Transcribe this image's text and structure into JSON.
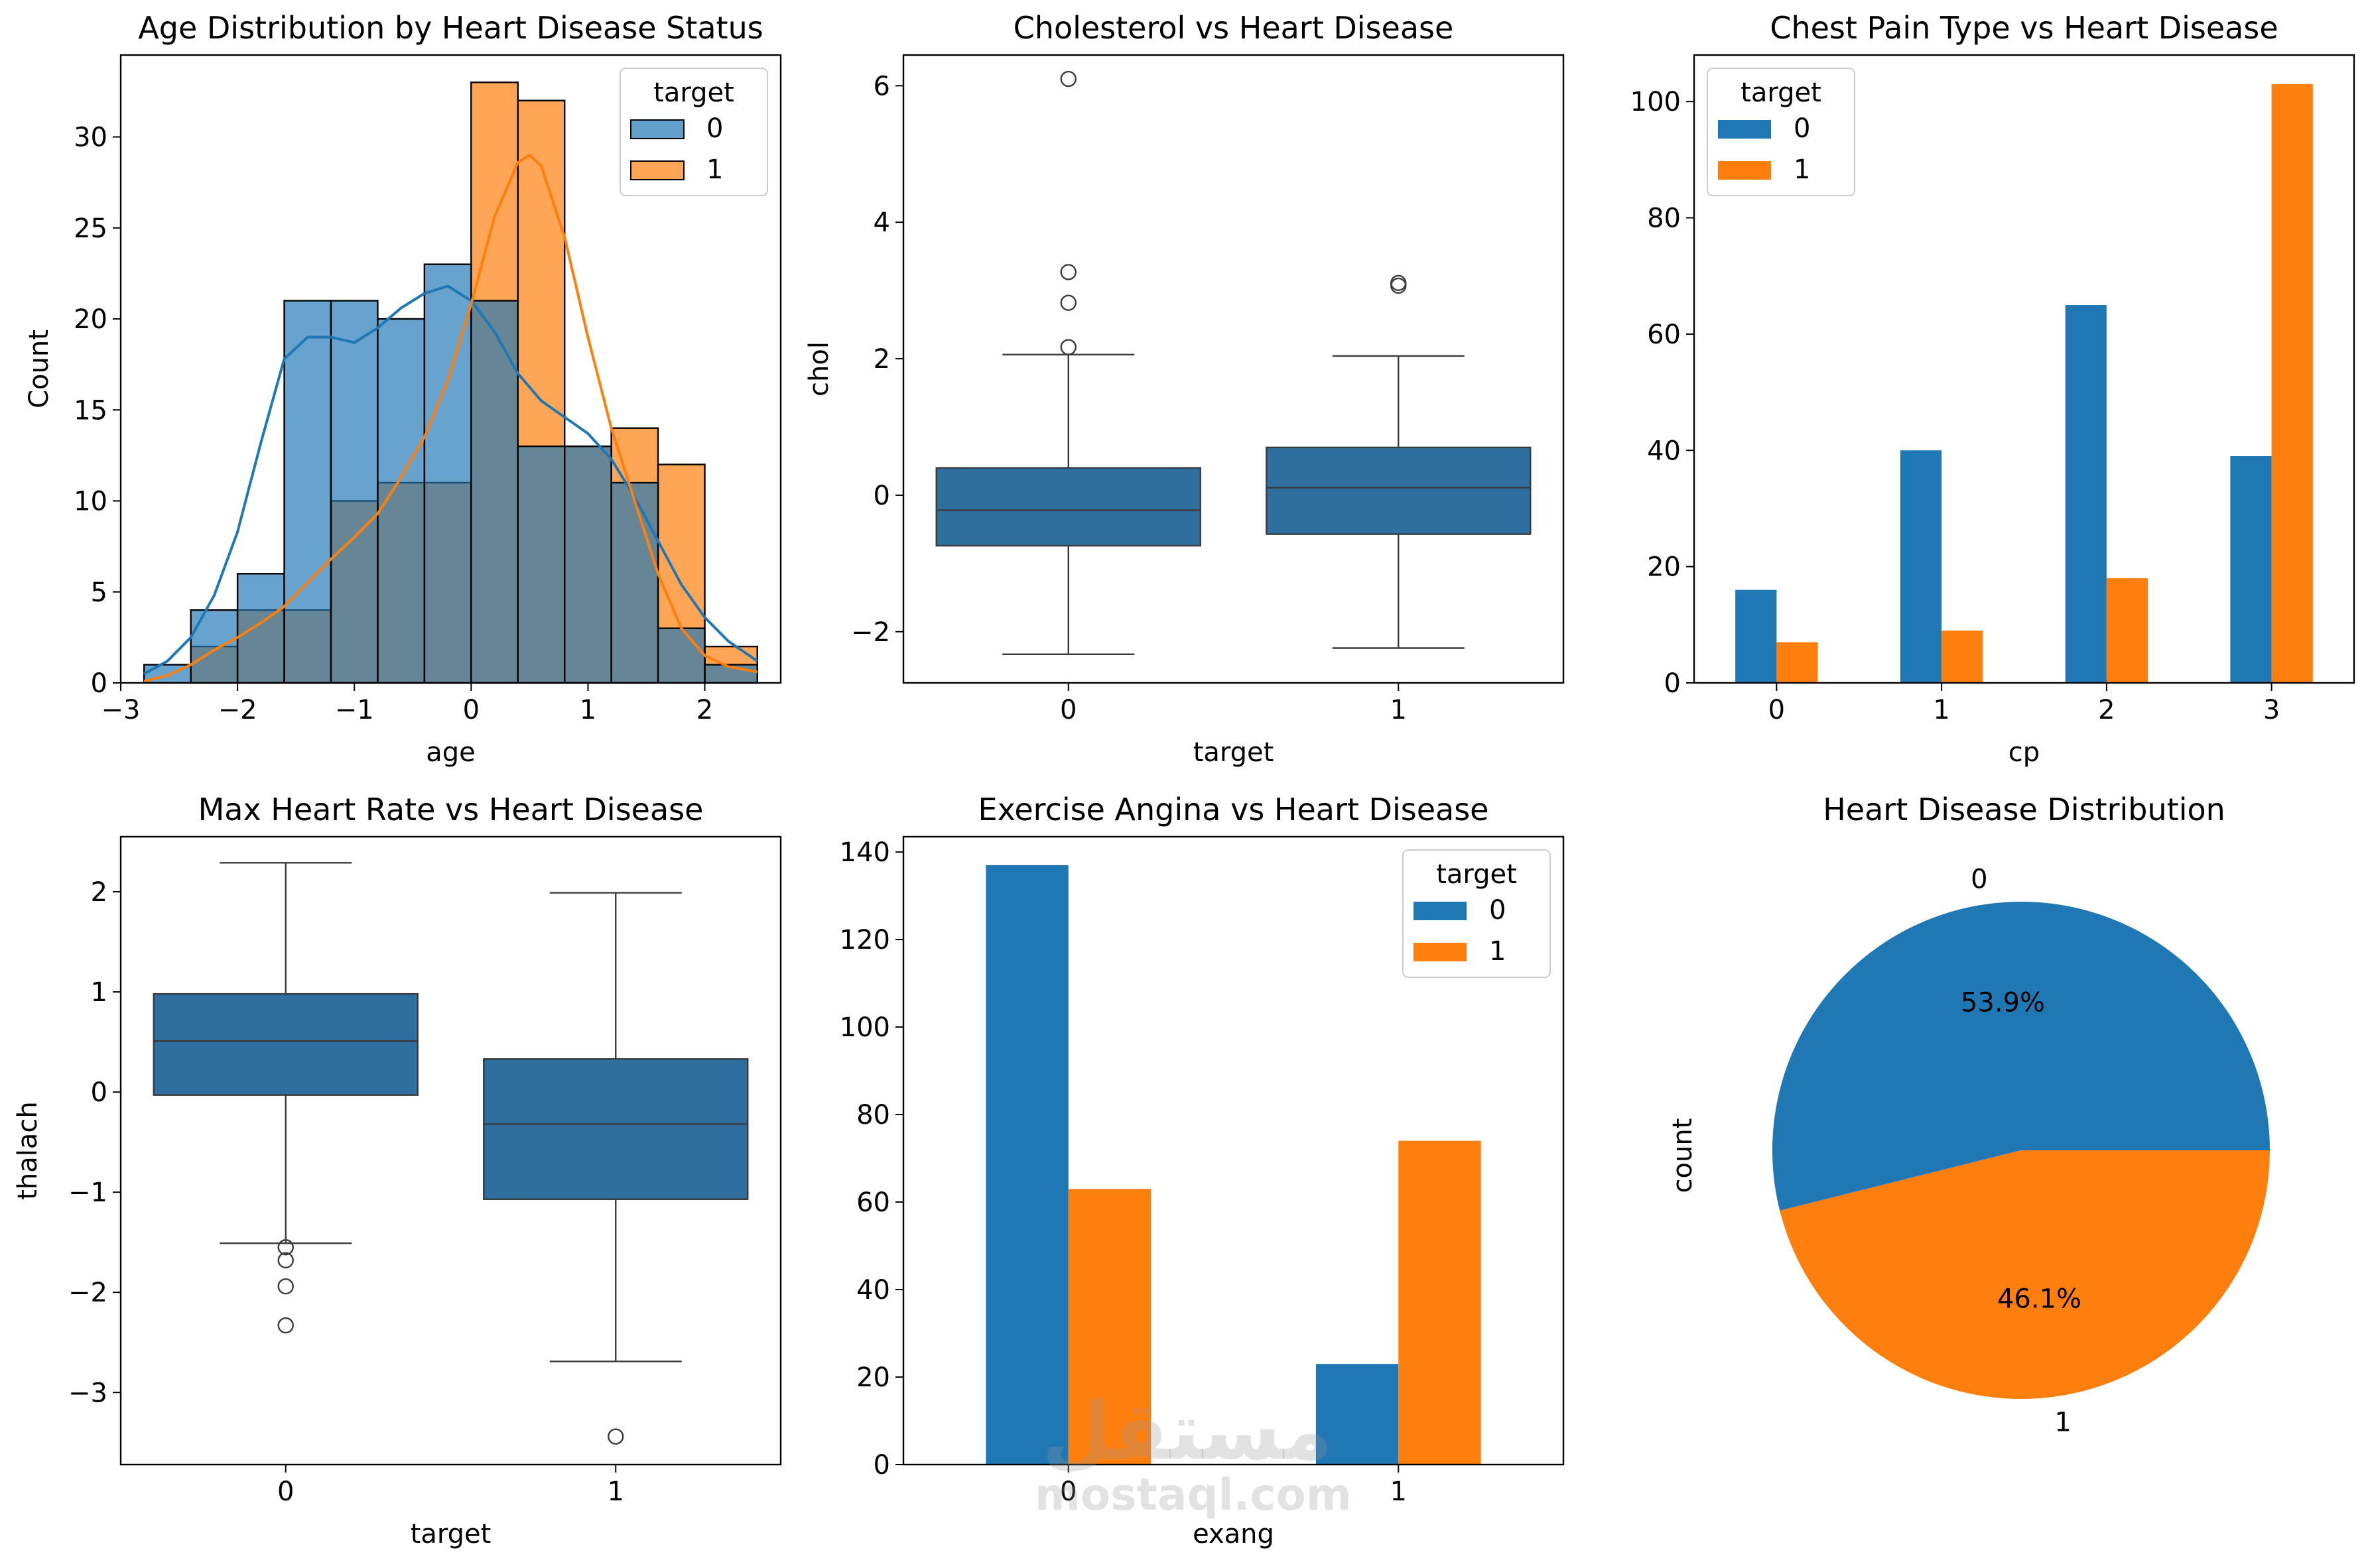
{
  "colors": {
    "c0": "#1f77b4",
    "c1": "#ff7f0e",
    "box": "#2f6f9f",
    "edge": "#3a3a3a"
  },
  "watermark": {
    "arabic": "مستقل",
    "latin": "mostaql.com"
  },
  "chart_data": [
    {
      "type": "histogram",
      "title": "Age Distribution by Heart Disease Status",
      "xlabel": "age",
      "ylabel": "Count",
      "xlim": [
        -3.0,
        2.65
      ],
      "ylim": [
        0,
        34.5
      ],
      "xticks": [
        -3,
        -2,
        -1,
        0,
        1,
        2
      ],
      "yticks": [
        0,
        5,
        10,
        15,
        20,
        25,
        30
      ],
      "bin_edges": [
        -2.8,
        -2.4,
        -2.0,
        -1.6,
        -1.2,
        -0.8,
        -0.4,
        0.0,
        0.4,
        0.8,
        1.2,
        1.6,
        2.0,
        2.45
      ],
      "series": [
        {
          "name": "0",
          "values": [
            1,
            4,
            6,
            21,
            21,
            20,
            23,
            21,
            13,
            13,
            11,
            3,
            1
          ],
          "kde_x": [
            -2.8,
            -2.6,
            -2.4,
            -2.2,
            -2.0,
            -1.8,
            -1.6,
            -1.4,
            -1.2,
            -1.0,
            -0.8,
            -0.6,
            -0.4,
            -0.2,
            0.0,
            0.2,
            0.4,
            0.6,
            0.8,
            1.0,
            1.2,
            1.4,
            1.6,
            1.8,
            2.0,
            2.2,
            2.45
          ],
          "kde_y": [
            0.5,
            1.2,
            2.5,
            4.8,
            8.3,
            13.2,
            17.8,
            19.0,
            19.0,
            18.7,
            19.5,
            20.6,
            21.4,
            21.8,
            21.0,
            19.3,
            17.0,
            15.5,
            14.6,
            13.7,
            12.3,
            10.2,
            7.8,
            5.4,
            3.6,
            2.3,
            1.2
          ]
        },
        {
          "name": "1",
          "values": [
            0,
            2,
            4,
            4,
            10,
            11,
            11,
            33,
            32,
            13,
            14,
            12,
            2
          ],
          "kde_x": [
            -2.8,
            -2.6,
            -2.4,
            -2.2,
            -2.0,
            -1.8,
            -1.6,
            -1.4,
            -1.2,
            -1.0,
            -0.8,
            -0.6,
            -0.4,
            -0.2,
            0.0,
            0.2,
            0.4,
            0.5,
            0.6,
            0.8,
            1.0,
            1.2,
            1.4,
            1.6,
            1.8,
            2.0,
            2.2,
            2.45
          ],
          "kde_y": [
            0.1,
            0.4,
            1.0,
            1.8,
            2.5,
            3.3,
            4.2,
            5.5,
            6.8,
            8.0,
            9.3,
            11.3,
            13.5,
            16.6,
            20.8,
            25.6,
            28.6,
            29.0,
            28.4,
            24.5,
            19.0,
            14.0,
            10.0,
            6.0,
            3.0,
            1.5,
            0.9,
            0.6
          ]
        }
      ],
      "legend": {
        "title": "target",
        "position": "top-right"
      }
    },
    {
      "type": "box",
      "title": "Cholesterol vs Heart Disease",
      "xlabel": "target",
      "ylabel": "chol",
      "categories": [
        "0",
        "1"
      ],
      "ylim": [
        -2.75,
        6.45
      ],
      "yticks": [
        -2,
        0,
        2,
        4,
        6
      ],
      "boxes": [
        {
          "whislo": -2.33,
          "q1": -0.74,
          "med": -0.22,
          "q3": 0.4,
          "whishi": 2.06,
          "fliers": [
            2.17,
            2.82,
            3.27,
            6.1
          ]
        },
        {
          "whislo": -2.24,
          "q1": -0.57,
          "med": 0.11,
          "q3": 0.7,
          "whishi": 2.04,
          "fliers": [
            3.07,
            3.11
          ]
        }
      ]
    },
    {
      "type": "bar",
      "title": "Chest Pain Type vs Heart Disease",
      "xlabel": "cp",
      "ylabel": "",
      "categories": [
        "0",
        "1",
        "2",
        "3"
      ],
      "ylim": [
        0,
        108
      ],
      "yticks": [
        0,
        20,
        40,
        60,
        80,
        100
      ],
      "series": [
        {
          "name": "0",
          "values": [
            16,
            40,
            65,
            39
          ]
        },
        {
          "name": "1",
          "values": [
            7,
            9,
            18,
            103
          ]
        }
      ],
      "legend": {
        "title": "target",
        "position": "top-left"
      }
    },
    {
      "type": "box",
      "title": "Max Heart Rate vs Heart Disease",
      "xlabel": "target",
      "ylabel": "thalach",
      "categories": [
        "0",
        "1"
      ],
      "ylim": [
        -3.72,
        2.55
      ],
      "yticks": [
        -3,
        -2,
        -1,
        0,
        1,
        2
      ],
      "boxes": [
        {
          "whislo": -1.51,
          "q1": -0.03,
          "med": 0.51,
          "q3": 0.98,
          "whishi": 2.29,
          "fliers": [
            -1.55,
            -1.68,
            -1.94,
            -2.33
          ]
        },
        {
          "whislo": -2.69,
          "q1": -1.07,
          "med": -0.32,
          "q3": 0.33,
          "whishi": 1.99,
          "fliers": [
            -3.44
          ]
        }
      ]
    },
    {
      "type": "bar",
      "title": "Exercise Angina vs Heart Disease",
      "xlabel": "exang",
      "ylabel": "",
      "categories": [
        "0",
        "1"
      ],
      "ylim": [
        0,
        143.5
      ],
      "yticks": [
        0,
        20,
        40,
        60,
        80,
        100,
        120,
        140
      ],
      "series": [
        {
          "name": "0",
          "values": [
            137,
            23
          ]
        },
        {
          "name": "1",
          "values": [
            63,
            74
          ]
        }
      ],
      "legend": {
        "title": "target",
        "position": "top-right"
      }
    },
    {
      "type": "pie",
      "title": "Heart Disease Distribution",
      "ylabel": "count",
      "labels": [
        "0",
        "1"
      ],
      "values": [
        53.9,
        46.1
      ],
      "pct_labels": [
        "53.9%",
        "46.1%"
      ]
    }
  ]
}
